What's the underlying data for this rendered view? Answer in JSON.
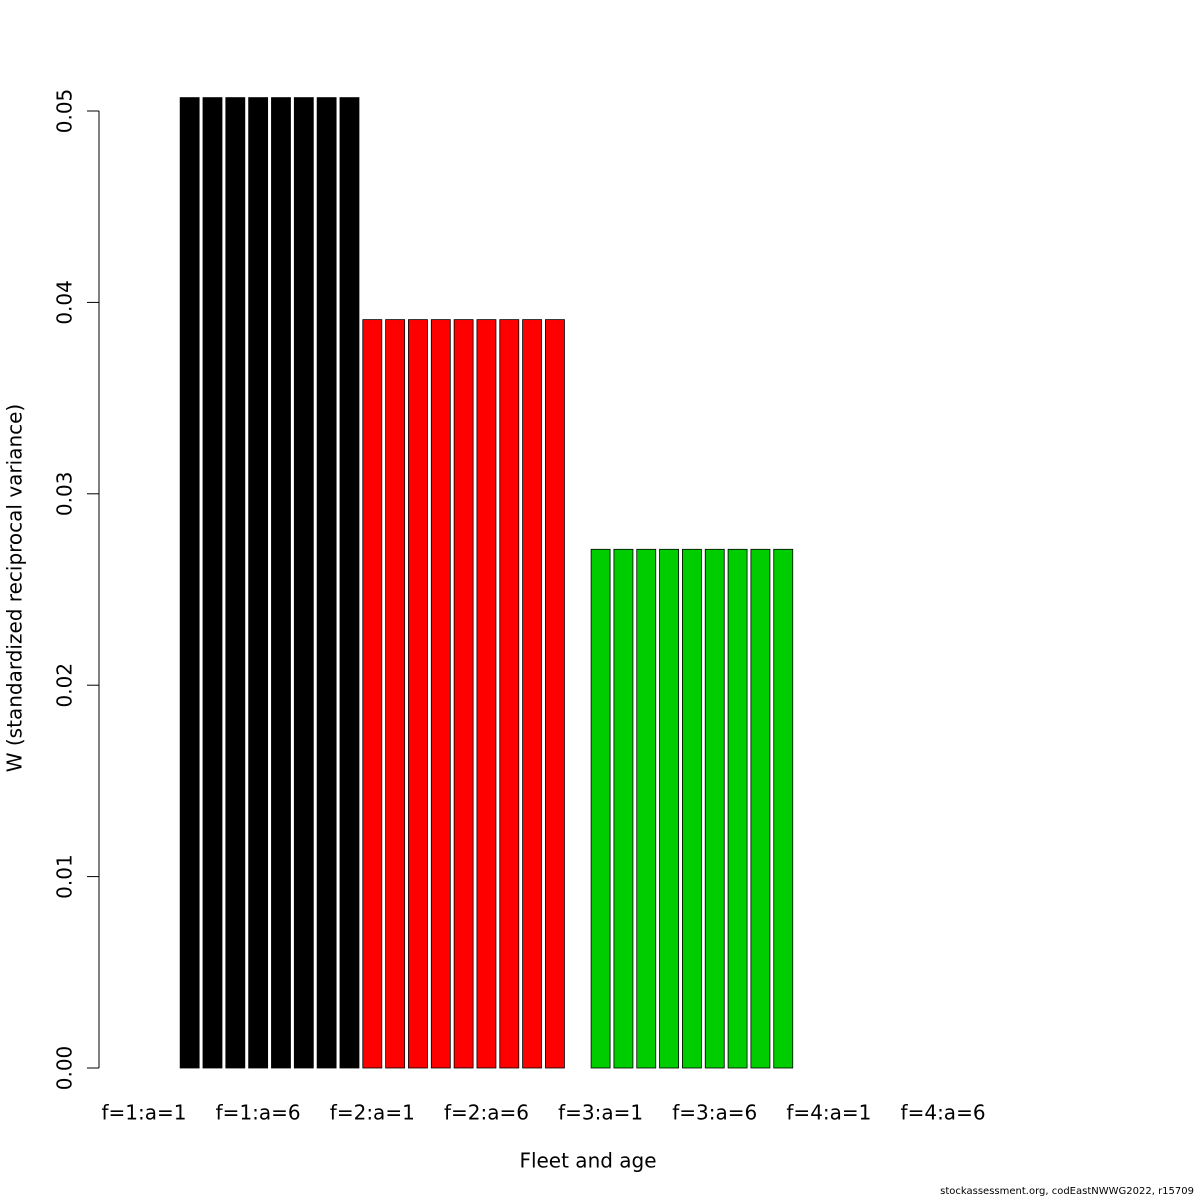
{
  "chart_data": {
    "type": "bar",
    "x_label": "Fleet and age",
    "y_label": "W (standardized reciprocal variance)",
    "footer": "stockassessment.org, codEastNWWG2022, r15709",
    "categories": [
      "f=1:a=1",
      null,
      null,
      null,
      null,
      "f=1:a=6",
      null,
      null,
      null,
      null,
      "f=2:a=1",
      null,
      null,
      null,
      null,
      "f=2:a=6",
      null,
      null,
      null,
      null,
      "f=3:a=1",
      null,
      null,
      null,
      null,
      "f=3:a=6",
      null,
      null,
      null,
      null,
      "f=4:a=1",
      null,
      null,
      null,
      null,
      "f=4:a=6",
      null,
      null,
      null,
      null
    ],
    "values": [
      null,
      null,
      0.0507,
      0.0507,
      0.0507,
      0.0507,
      0.0507,
      0.0507,
      0.0507,
      0.0507,
      0.0391,
      0.0391,
      0.0391,
      0.0391,
      0.0391,
      0.0391,
      0.0391,
      0.0391,
      0.0391,
      null,
      0.0271,
      0.0271,
      0.0271,
      0.0271,
      0.0271,
      0.0271,
      0.0271,
      0.0271,
      0.0271,
      null,
      null,
      null,
      null,
      null,
      null,
      null,
      null,
      null,
      null,
      null
    ],
    "colors": [
      "#000000",
      "#000000",
      "#000000",
      "#000000",
      "#000000",
      "#000000",
      "#000000",
      "#000000",
      "#000000",
      "#000000",
      "#ff0000",
      "#ff0000",
      "#ff0000",
      "#ff0000",
      "#ff0000",
      "#ff0000",
      "#ff0000",
      "#ff0000",
      "#ff0000",
      "#ff0000",
      "#00cd00",
      "#00cd00",
      "#00cd00",
      "#00cd00",
      "#00cd00",
      "#00cd00",
      "#00cd00",
      "#00cd00",
      "#00cd00",
      "#00cd00",
      "#0000ff",
      "#0000ff",
      "#0000ff",
      "#0000ff",
      "#0000ff",
      "#0000ff",
      "#0000ff",
      "#0000ff",
      "#0000ff",
      "#0000ff"
    ],
    "ylim": [
      0,
      0.05
    ],
    "yticks": [
      {
        "value": 0,
        "label": "0.00"
      },
      0.01,
      0.02,
      0.03,
      0.04,
      0.05
    ]
  }
}
